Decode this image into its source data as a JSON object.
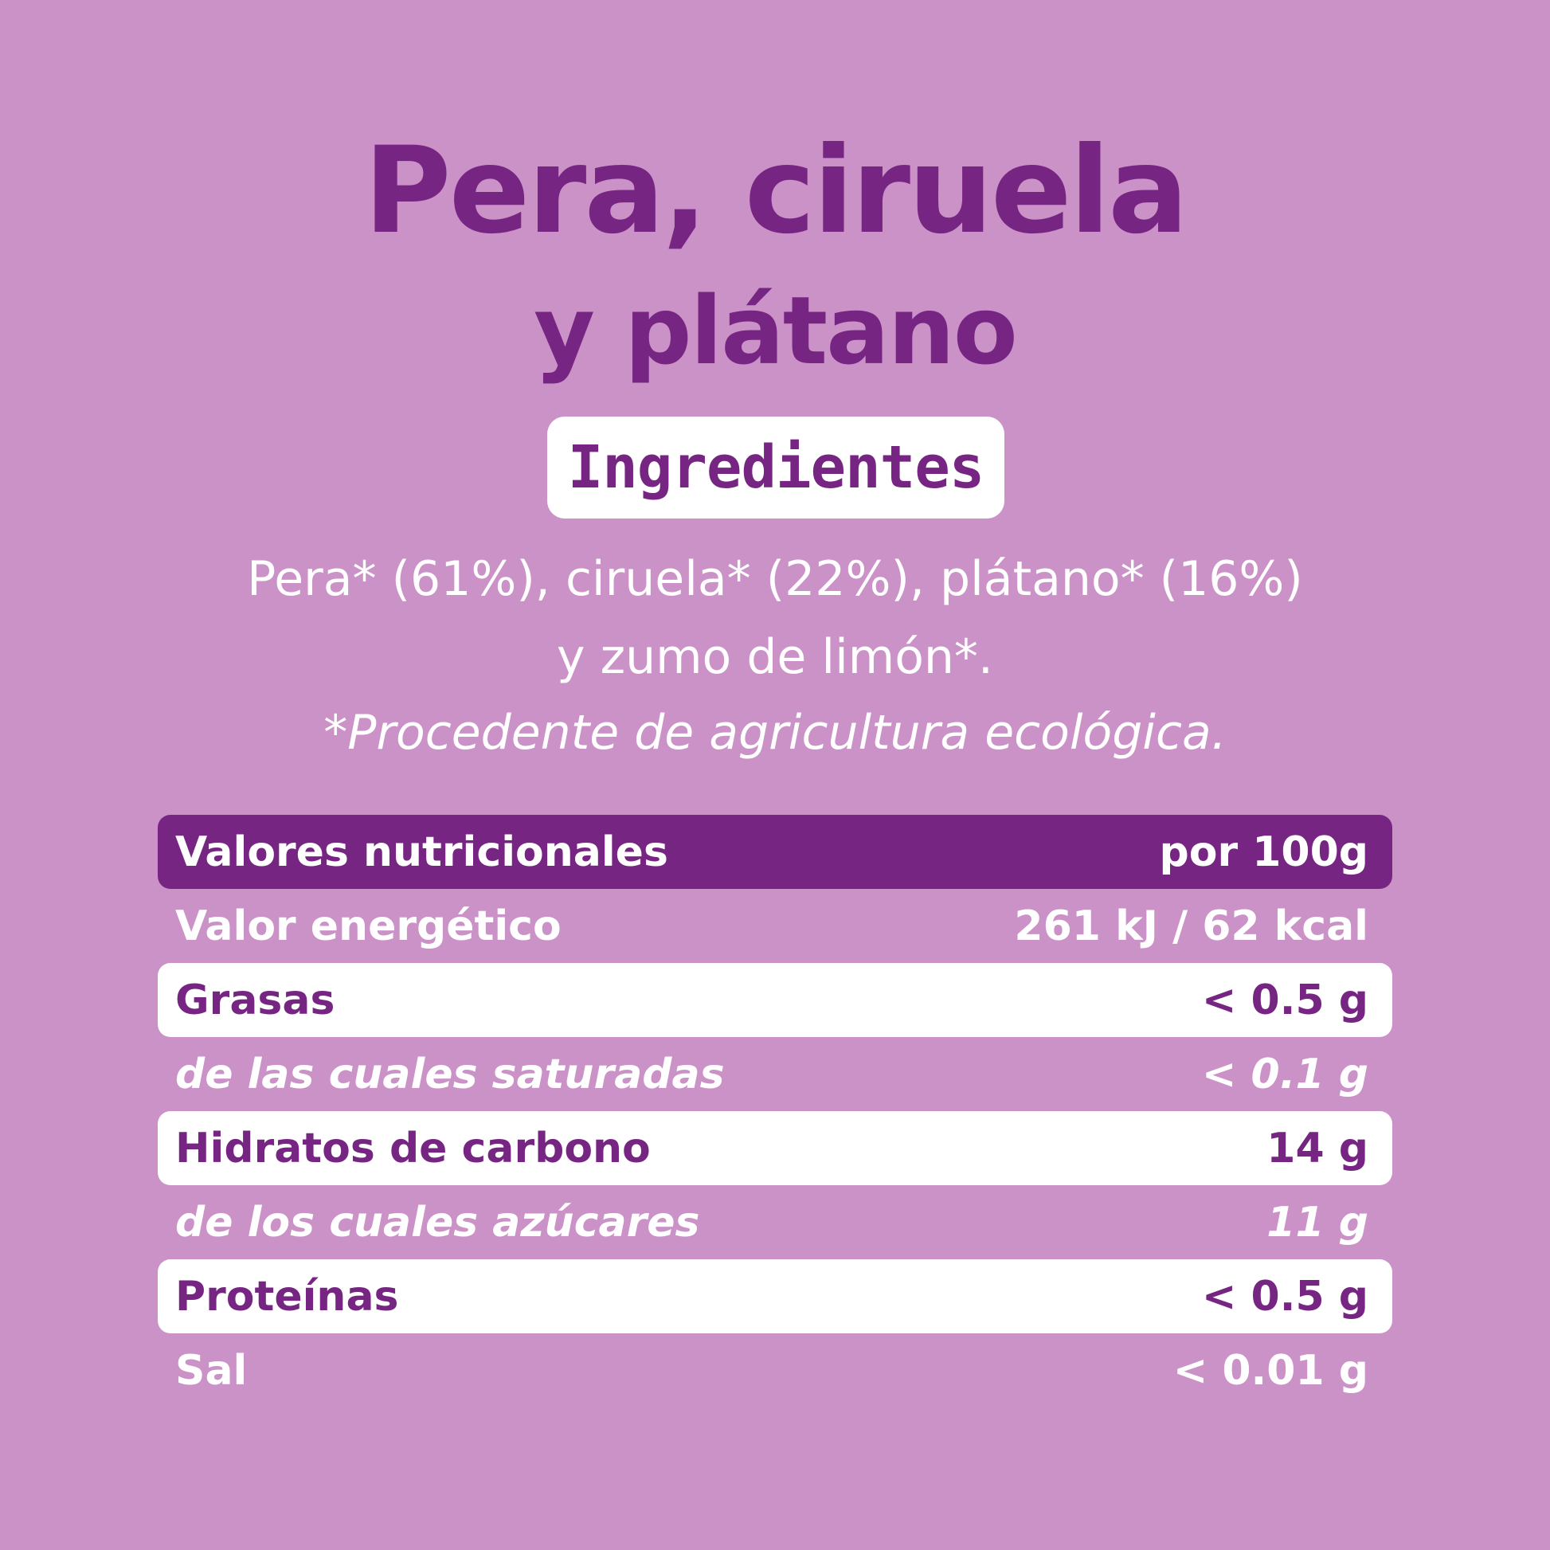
{
  "title": {
    "line1": "Pera, ciruela",
    "line2": "y plátano"
  },
  "ingredients": {
    "badge": "Ingredientes",
    "line1": "Pera* (61%), ciruela* (22%), plátano* (16%)",
    "line2": "y zumo de limón*.",
    "note": "*Procedente de agricultura ecológica."
  },
  "nutrition": {
    "header": {
      "label": "Valores nutricionales",
      "value": "por 100g"
    },
    "rows": [
      {
        "label": "Valor energético",
        "value": "261 kJ / 62 kcal"
      },
      {
        "label": "Grasas",
        "value": "< 0.5 g"
      },
      {
        "label": "de las cuales saturadas",
        "value": "< 0.1 g"
      },
      {
        "label": "Hidratos de carbono",
        "value": "14 g"
      },
      {
        "label": "de los cuales azúcares",
        "value": "11 g"
      },
      {
        "label": "Proteínas",
        "value": "< 0.5 g"
      },
      {
        "label": "Sal",
        "value": "< 0.01 g"
      }
    ]
  },
  "colors": {
    "background": "#cb92c8",
    "accent": "#772583",
    "white": "#ffffff"
  }
}
